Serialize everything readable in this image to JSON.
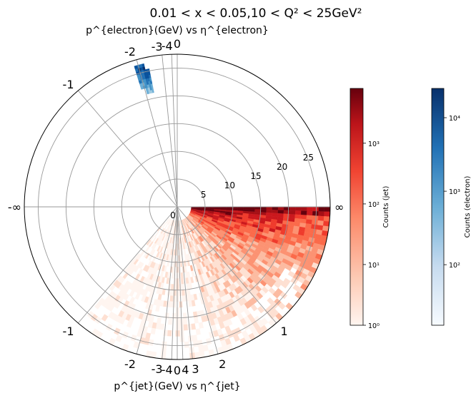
{
  "chart_data": {
    "type": "heatmap",
    "projection": "polar",
    "title": "0.01 < x < 0.05,10 < Q² < 25GeV²",
    "top_label": "p^{electron}(GeV) vs η^{electron}",
    "bottom_label": "p^{jet}(GeV) vs η^{jet}",
    "radial_axis": {
      "quantity": "p (GeV)",
      "ticks": [
        "0",
        "5",
        "10",
        "15",
        "20",
        "25"
      ],
      "range": [
        0,
        27.5
      ]
    },
    "eta_ticks_upper": [
      "0",
      "-1",
      "-2",
      "-3",
      "-4",
      "-∞"
    ],
    "eta_ticks_lower": [
      "0",
      "-1",
      "-2",
      "-3",
      "-4"
    ],
    "eta_ticks_right": [
      "∞",
      "4",
      "3",
      "2",
      "1"
    ],
    "grid": true,
    "series": [
      {
        "name": "electron",
        "colormap": "Blues",
        "region": {
          "eta": [
            -2.3,
            -1.9
          ],
          "p": [
            21,
            26.5
          ]
        }
      },
      {
        "name": "jet",
        "colormap": "Reds",
        "region": {
          "eta_hemisphere": "lower",
          "p": [
            2.5,
            27.5
          ]
        }
      }
    ],
    "colorbars": [
      {
        "label": "Counts (jet)",
        "scale": "log",
        "ticks": [
          "10⁰",
          "10¹",
          "10²",
          "10³"
        ],
        "range": [
          1,
          8000
        ],
        "colormap": "Reds"
      },
      {
        "label": "Counts (electron)",
        "scale": "log",
        "ticks": [
          "10²",
          "10³",
          "10⁴"
        ],
        "range": [
          15,
          25000
        ],
        "colormap": "Blues"
      }
    ]
  }
}
